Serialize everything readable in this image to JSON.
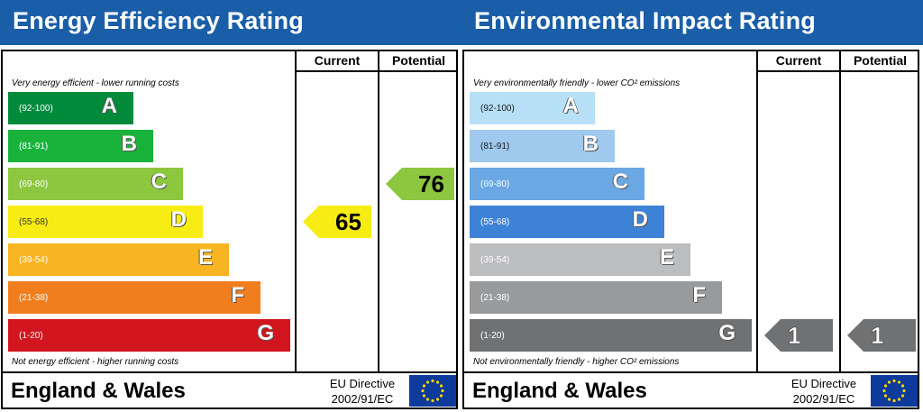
{
  "chart_data": [
    {
      "type": "bar",
      "title": "Energy Efficiency Rating",
      "columns": [
        "Current",
        "Potential"
      ],
      "top_note": "Very energy efficient - lower running costs",
      "bottom_note": "Not energy efficient - higher running costs",
      "bands": [
        {
          "letter": "A",
          "range": "(92-100)",
          "color": "#008a3a"
        },
        {
          "letter": "B",
          "range": "(81-91)",
          "color": "#19b33b"
        },
        {
          "letter": "C",
          "range": "(69-80)",
          "color": "#8dc63f"
        },
        {
          "letter": "D",
          "range": "(55-68)",
          "color": "#f7ec14"
        },
        {
          "letter": "E",
          "range": "(39-54)",
          "color": "#f8b421"
        },
        {
          "letter": "F",
          "range": "(21-38)",
          "color": "#f07e1f"
        },
        {
          "letter": "G",
          "range": "(1-20)",
          "color": "#d2151e"
        }
      ],
      "current": {
        "value": "65",
        "band": "D",
        "color": "#f7ec14"
      },
      "potential": {
        "value": "76",
        "band": "C",
        "color": "#8dc63f"
      },
      "footer": {
        "region": "England & Wales",
        "directive_line1": "EU Directive",
        "directive_line2": "2002/91/EC"
      }
    },
    {
      "type": "bar",
      "title": "Environmental Impact Rating",
      "columns": [
        "Current",
        "Potential"
      ],
      "top_note": "Very environmentally friendly - lower CO² emissions",
      "bottom_note": "Not environmentally friendly - higher CO² emissions",
      "bands": [
        {
          "letter": "A",
          "range": "(92-100)",
          "color": "#b7e0f6"
        },
        {
          "letter": "B",
          "range": "(81-91)",
          "color": "#9fc9ed"
        },
        {
          "letter": "C",
          "range": "(69-80)",
          "color": "#6aa7e3"
        },
        {
          "letter": "D",
          "range": "(55-68)",
          "color": "#3e82d8"
        },
        {
          "letter": "E",
          "range": "(39-54)",
          "color": "#bcbdbf"
        },
        {
          "letter": "F",
          "range": "(21-38)",
          "color": "#999a9c"
        },
        {
          "letter": "G",
          "range": "(1-20)",
          "color": "#707173"
        }
      ],
      "current": {
        "value": "1",
        "band": "G",
        "color": "#707173"
      },
      "potential": {
        "value": "1",
        "band": "G",
        "color": "#707173"
      },
      "footer": {
        "region": "England & Wales",
        "directive_line1": "EU Directive",
        "directive_line2": "2002/91/EC"
      }
    }
  ]
}
